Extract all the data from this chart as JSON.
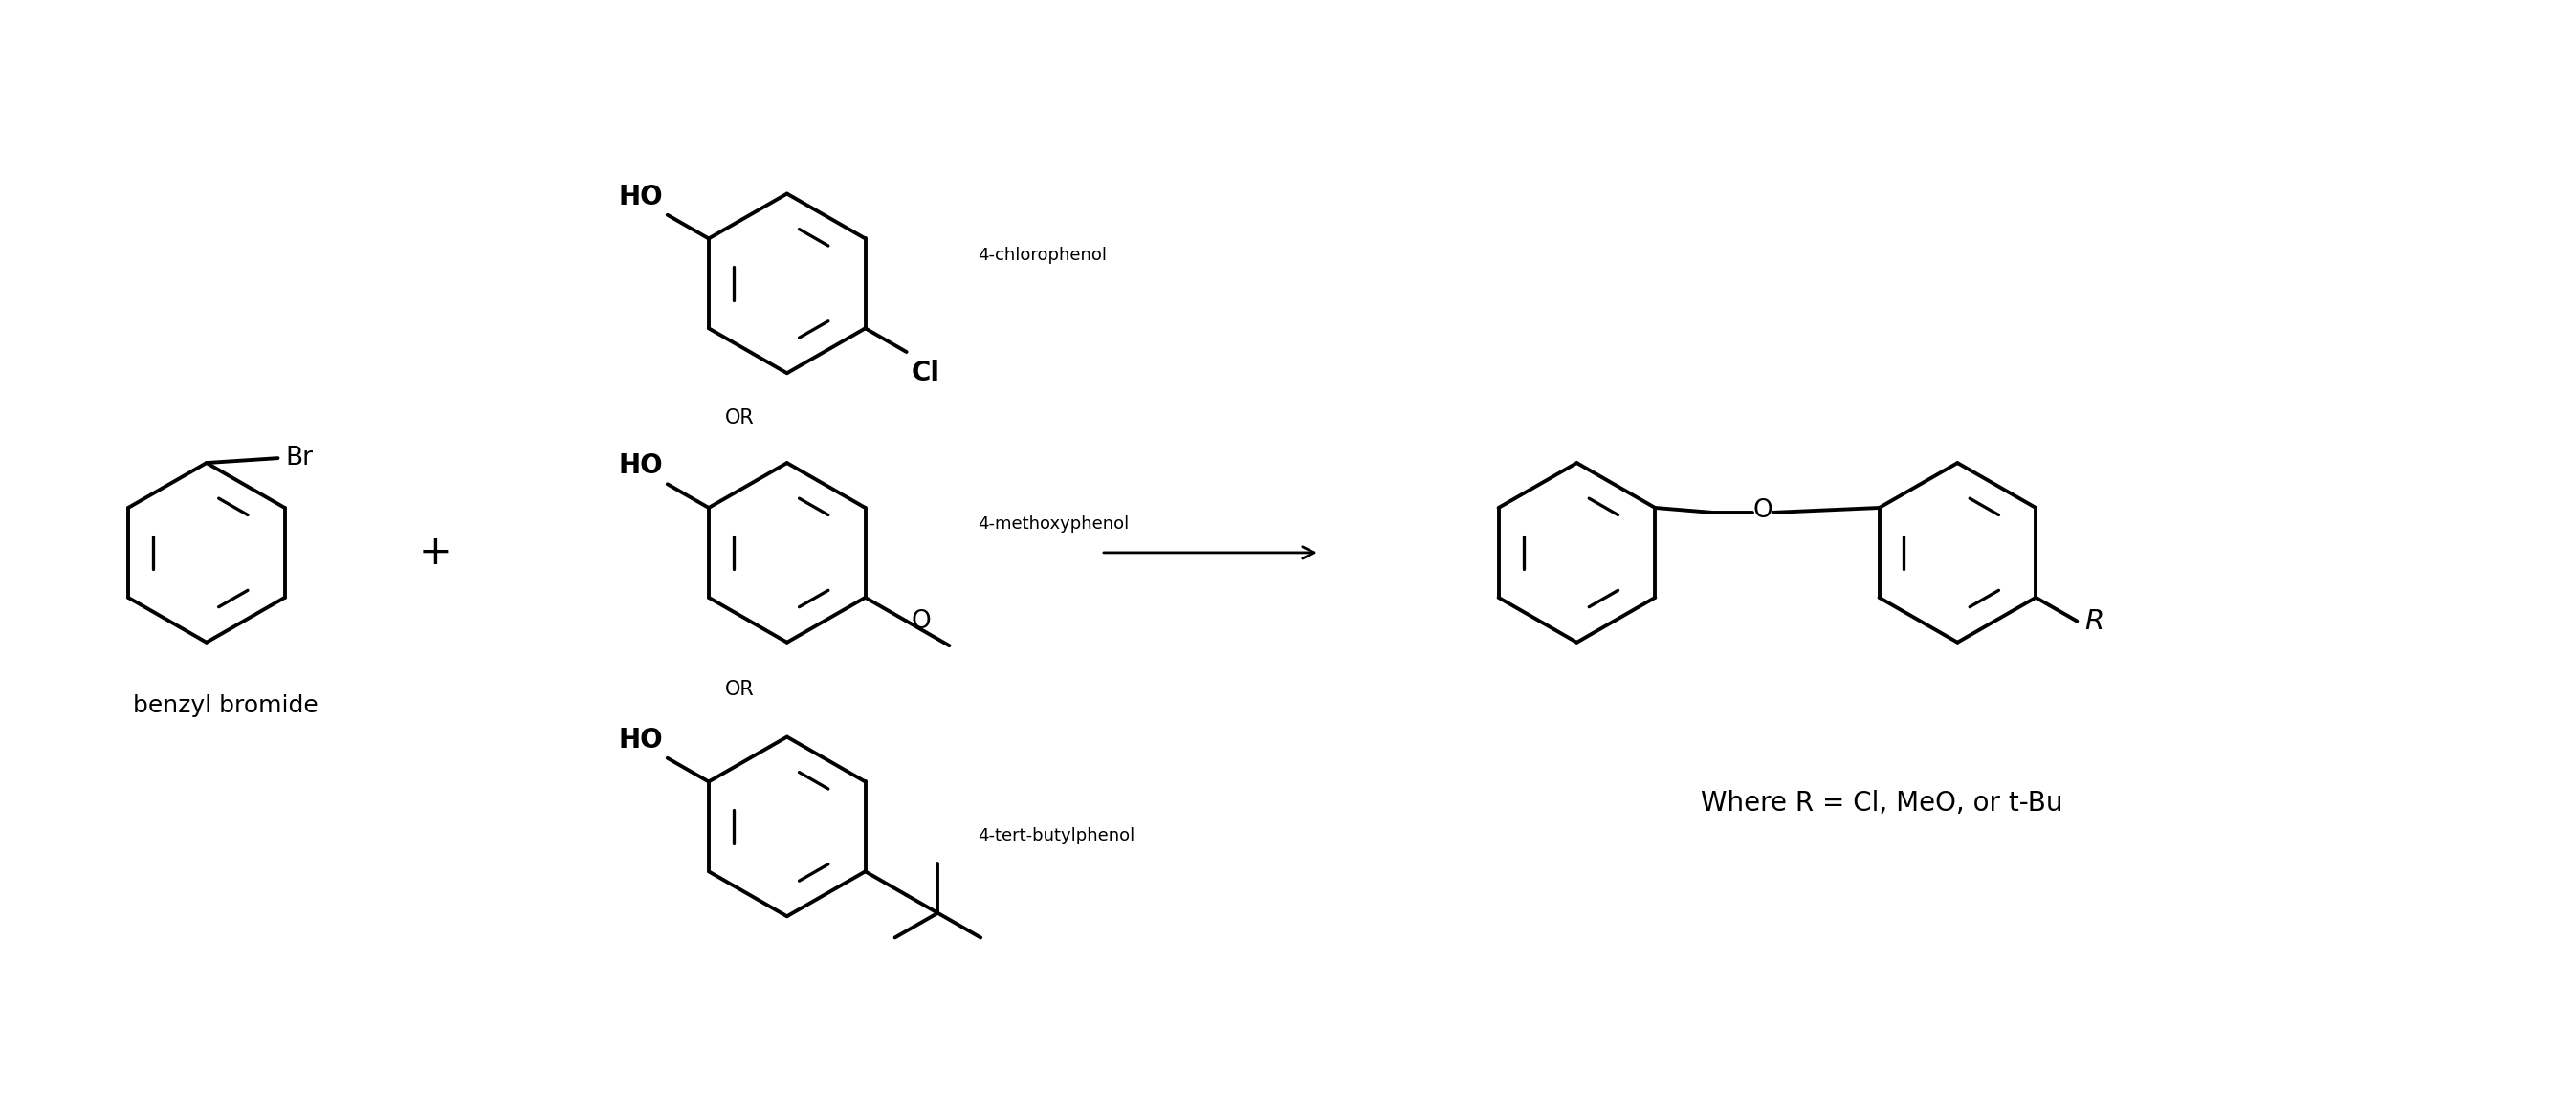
{
  "background_color": "#ffffff",
  "line_color": "#000000",
  "line_width": 2.8,
  "font_size_label": 13,
  "font_size_name": 18,
  "font_size_atom": 19,
  "font_size_where": 20,
  "labels": {
    "benzyl_bromide": "benzyl bromide",
    "chlorophenol": "4-chlorophenol",
    "methoxyphenol": "4-methoxyphenol",
    "butylphenol": "4-tert-butylphenol",
    "where": "Where R = Cl, MeO, or t-Bu"
  },
  "or_text": "OR",
  "plus_text": "+",
  "br_text": "Br",
  "ho_text": "HO",
  "cl_text": "Cl",
  "o_text": "O",
  "r_text": "R"
}
